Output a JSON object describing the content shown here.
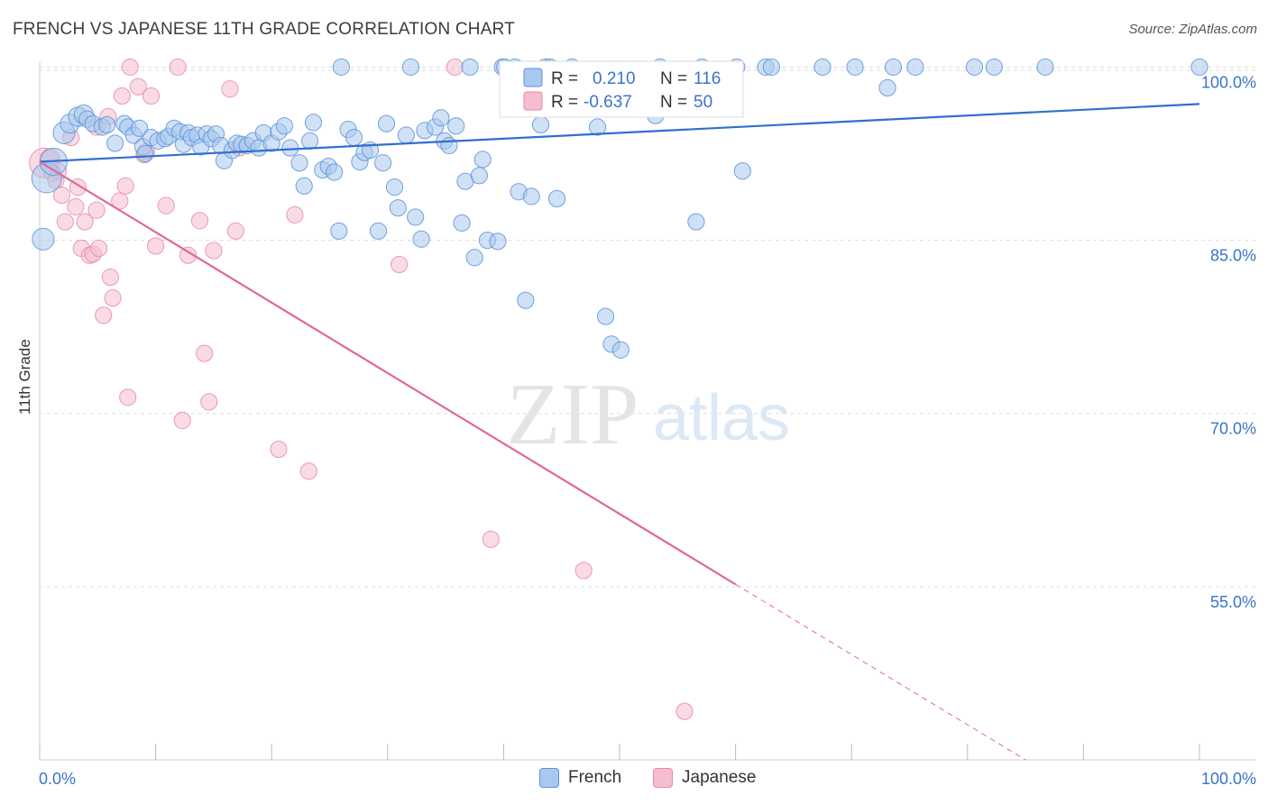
{
  "header": {
    "title": "FRENCH VS JAPANESE 11TH GRADE CORRELATION CHART",
    "source": "Source: ZipAtlas.com"
  },
  "watermark": {
    "zip": "ZIP",
    "atlas": "atlas"
  },
  "legend_top": {
    "french": {
      "r_label": "R =",
      "r_value": "0.210",
      "n_label": "N =",
      "n_value": "116"
    },
    "japanese": {
      "r_label": "R =",
      "r_value": "-0.637",
      "n_label": "N =",
      "n_value": "50"
    }
  },
  "legend_bottom": {
    "french": "French",
    "japanese": "Japanese"
  },
  "colors": {
    "french_fill": "#a9c8ef",
    "french_stroke": "#5b93d8",
    "french_line": "#2f6fcf",
    "japanese_fill": "#f6bcd0",
    "japanese_stroke": "#e889a8",
    "japanese_line": "#e0679a",
    "axis_text": "#3a74c9",
    "grid": "#dddddd"
  },
  "chart_data": {
    "type": "scatter",
    "title": "FRENCH VS JAPANESE 11TH GRADE CORRELATION CHART",
    "xlabel": "",
    "ylabel": "11th Grade",
    "xlim": [
      0,
      100
    ],
    "ylim": [
      40,
      100.5
    ],
    "x_tick_labels": [
      "0.0%",
      "100.0%"
    ],
    "y_tick_labels": [
      "100.0%",
      "85.0%",
      "70.0%",
      "55.0%"
    ],
    "y_ticks": [
      100,
      85,
      70,
      55
    ],
    "series": [
      {
        "name": "French",
        "r": 0.21,
        "n": 116,
        "trend": {
          "x": [
            0,
            100
          ],
          "y": [
            91.8,
            96.8
          ]
        },
        "points": [
          [
            0.3,
            85.1,
            16
          ],
          [
            0.6,
            90.4,
            22
          ],
          [
            1.2,
            91.8,
            20
          ],
          [
            2.1,
            94.3,
            16
          ],
          [
            2.6,
            95.1,
            14
          ],
          [
            3.3,
            95.7,
            14
          ],
          [
            3.8,
            95.9,
            14
          ],
          [
            4.1,
            95.5,
            12
          ],
          [
            4.6,
            95.1,
            12
          ],
          [
            5.4,
            94.8,
            12
          ],
          [
            5.8,
            95.0,
            12
          ],
          [
            6.5,
            93.4,
            12
          ],
          [
            7.3,
            95.1,
            12
          ],
          [
            7.6,
            94.8,
            12
          ],
          [
            8.1,
            94.1,
            12
          ],
          [
            8.6,
            94.7,
            12
          ],
          [
            8.9,
            93.1,
            12
          ],
          [
            9.1,
            92.5,
            12
          ],
          [
            9.6,
            93.9,
            12
          ],
          [
            10.2,
            93.6,
            12
          ],
          [
            10.8,
            93.8,
            12
          ],
          [
            11.1,
            94.0,
            12
          ],
          [
            11.6,
            94.7,
            12
          ],
          [
            12.1,
            94.4,
            12
          ],
          [
            12.4,
            93.3,
            12
          ],
          [
            12.8,
            94.3,
            12
          ],
          [
            13.1,
            93.9,
            12
          ],
          [
            13.6,
            94.1,
            12
          ],
          [
            13.9,
            93.1,
            12
          ],
          [
            14.4,
            94.2,
            12
          ],
          [
            14.8,
            93.8,
            12
          ],
          [
            15.2,
            94.2,
            12
          ],
          [
            15.6,
            93.2,
            12
          ],
          [
            15.9,
            91.9,
            12
          ],
          [
            16.6,
            92.8,
            12
          ],
          [
            17.0,
            93.4,
            12
          ],
          [
            17.4,
            93.3,
            12
          ],
          [
            17.9,
            93.2,
            12
          ],
          [
            18.4,
            93.6,
            12
          ],
          [
            18.9,
            93.0,
            12
          ],
          [
            19.3,
            94.3,
            12
          ],
          [
            20.0,
            93.4,
            12
          ],
          [
            20.6,
            94.4,
            12
          ],
          [
            21.1,
            94.9,
            12
          ],
          [
            21.6,
            93.0,
            12
          ],
          [
            22.4,
            91.7,
            12
          ],
          [
            22.8,
            89.7,
            12
          ],
          [
            23.3,
            93.6,
            12
          ],
          [
            23.6,
            95.2,
            12
          ],
          [
            24.4,
            91.1,
            12
          ],
          [
            24.9,
            91.4,
            12
          ],
          [
            25.4,
            90.9,
            12
          ],
          [
            25.8,
            85.8,
            12
          ],
          [
            26.6,
            94.6,
            12
          ],
          [
            27.1,
            93.9,
            12
          ],
          [
            27.6,
            91.8,
            12
          ],
          [
            28.0,
            92.6,
            12
          ],
          [
            28.5,
            92.8,
            12
          ],
          [
            29.2,
            85.8,
            12
          ],
          [
            29.6,
            91.7,
            12
          ],
          [
            29.9,
            95.1,
            12
          ],
          [
            30.6,
            89.6,
            12
          ],
          [
            30.9,
            87.8,
            12
          ],
          [
            31.6,
            94.1,
            12
          ],
          [
            32.4,
            87.0,
            12
          ],
          [
            32.9,
            85.1,
            12
          ],
          [
            33.2,
            94.5,
            12
          ],
          [
            34.1,
            94.8,
            12
          ],
          [
            34.6,
            95.6,
            12
          ],
          [
            34.9,
            93.6,
            12
          ],
          [
            35.3,
            93.2,
            12
          ],
          [
            35.9,
            94.9,
            12
          ],
          [
            36.4,
            86.5,
            12
          ],
          [
            36.7,
            90.1,
            12
          ],
          [
            37.5,
            83.5,
            12
          ],
          [
            37.9,
            90.6,
            12
          ],
          [
            38.2,
            92.0,
            12
          ],
          [
            38.6,
            85.0,
            12
          ],
          [
            39.5,
            84.9,
            12
          ],
          [
            39.9,
            100.0,
            12
          ],
          [
            40.1,
            100.0,
            12
          ],
          [
            41.0,
            100.0,
            12
          ],
          [
            41.3,
            89.2,
            12
          ],
          [
            41.9,
            79.8,
            12
          ],
          [
            42.4,
            88.8,
            12
          ],
          [
            43.2,
            95.0,
            12
          ],
          [
            43.6,
            100.0,
            12
          ],
          [
            44.6,
            88.6,
            12
          ],
          [
            45.9,
            100.0,
            12
          ],
          [
            48.1,
            94.8,
            12
          ],
          [
            48.8,
            78.4,
            12
          ],
          [
            49.3,
            76.0,
            12
          ],
          [
            50.1,
            75.5,
            12
          ],
          [
            53.1,
            95.8,
            12
          ],
          [
            53.5,
            100.0,
            12
          ],
          [
            56.6,
            86.6,
            12
          ],
          [
            57.1,
            100.0,
            12
          ],
          [
            60.1,
            100.0,
            12
          ],
          [
            60.6,
            91.0,
            12
          ],
          [
            62.6,
            100.0,
            12
          ],
          [
            63.1,
            100.0,
            12
          ],
          [
            67.5,
            100.0,
            12
          ],
          [
            70.3,
            100.0,
            12
          ],
          [
            73.1,
            98.2,
            12
          ],
          [
            73.6,
            100.0,
            12
          ],
          [
            75.5,
            100.0,
            12
          ],
          [
            80.6,
            100.0,
            12
          ],
          [
            82.3,
            100.0,
            12
          ],
          [
            86.7,
            100.0,
            12
          ],
          [
            100.0,
            100.0,
            12
          ],
          [
            37.1,
            100.0,
            12
          ],
          [
            32.0,
            100.0,
            12
          ],
          [
            26.0,
            100.0,
            12
          ],
          [
            44.0,
            100.0,
            12
          ]
        ]
      },
      {
        "name": "Japanese",
        "r": -0.637,
        "n": 50,
        "trend": {
          "x": [
            0,
            60
          ],
          "y": [
            91.8,
            55.2
          ]
        },
        "trend_dashed": {
          "x": [
            60,
            85
          ],
          "y": [
            55.2,
            40.0
          ]
        },
        "points": [
          [
            0.4,
            91.7,
            22
          ],
          [
            0.9,
            92.1,
            14
          ],
          [
            1.1,
            90.8,
            12
          ],
          [
            1.4,
            90.2,
            12
          ],
          [
            1.6,
            91.0,
            12
          ],
          [
            1.9,
            88.9,
            12
          ],
          [
            2.2,
            86.6,
            12
          ],
          [
            2.7,
            93.9,
            12
          ],
          [
            3.1,
            87.9,
            12
          ],
          [
            3.3,
            89.6,
            12
          ],
          [
            3.6,
            84.3,
            12
          ],
          [
            3.9,
            86.6,
            12
          ],
          [
            4.3,
            83.7,
            12
          ],
          [
            4.6,
            83.8,
            12
          ],
          [
            4.9,
            87.6,
            12
          ],
          [
            5.1,
            84.3,
            12
          ],
          [
            5.5,
            78.5,
            12
          ],
          [
            5.9,
            95.7,
            12
          ],
          [
            6.1,
            81.8,
            12
          ],
          [
            6.3,
            80.0,
            12
          ],
          [
            6.9,
            88.4,
            12
          ],
          [
            7.1,
            97.5,
            12
          ],
          [
            7.4,
            89.7,
            12
          ],
          [
            7.6,
            71.4,
            12
          ],
          [
            7.8,
            100.0,
            12
          ],
          [
            8.5,
            98.3,
            12
          ],
          [
            9.0,
            92.4,
            12
          ],
          [
            9.2,
            92.7,
            12
          ],
          [
            9.6,
            97.5,
            12
          ],
          [
            10.0,
            84.5,
            12
          ],
          [
            10.9,
            88.0,
            12
          ],
          [
            11.9,
            100.0,
            12
          ],
          [
            12.3,
            69.4,
            12
          ],
          [
            12.8,
            83.7,
            12
          ],
          [
            13.8,
            86.7,
            12
          ],
          [
            14.2,
            75.2,
            12
          ],
          [
            14.6,
            71.0,
            12
          ],
          [
            15.0,
            84.1,
            12
          ],
          [
            16.4,
            98.1,
            12
          ],
          [
            16.9,
            85.8,
            12
          ],
          [
            20.6,
            66.9,
            12
          ],
          [
            22.0,
            87.2,
            12
          ],
          [
            23.2,
            65.0,
            12
          ],
          [
            31.0,
            82.9,
            12
          ],
          [
            35.8,
            100.0,
            12
          ],
          [
            38.9,
            59.1,
            12
          ],
          [
            46.9,
            56.4,
            12
          ],
          [
            55.6,
            44.2,
            12
          ],
          [
            17.2,
            93.0,
            12
          ],
          [
            4.9,
            94.8,
            12
          ]
        ]
      }
    ]
  }
}
